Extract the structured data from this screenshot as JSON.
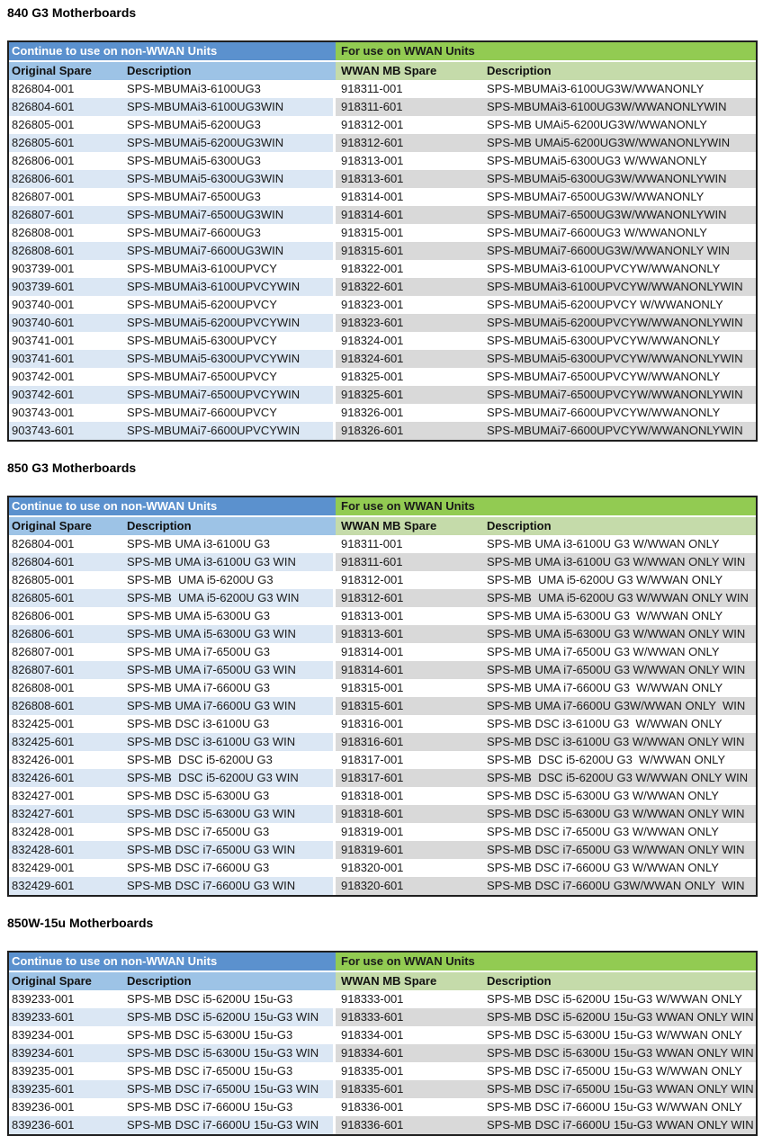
{
  "colors": {
    "header_blue": "#5b91ce",
    "header_blue_light": "#9dc3e6",
    "header_green": "#92cb52",
    "header_green_light": "#c5dbaa",
    "stripe_blue": "#dbe7f4",
    "stripe_gray": "#d9d9d9",
    "border_dark": "#1f1f1f"
  },
  "sections": [
    {
      "title": "840 G3 Motherboards",
      "left_group_label": "Continue to use on non-WWAN Units",
      "right_group_label": "For use on WWAN Units",
      "columns": [
        "Original Spare",
        "Description",
        "WWAN MB Spare",
        "Description"
      ],
      "rows": [
        [
          "826804-001",
          "SPS-MBUMAi3-6100UG3",
          "918311-001",
          "SPS-MBUMAi3-6100UG3W/WWANONLY"
        ],
        [
          "826804-601",
          "SPS-MBUMAi3-6100UG3WIN",
          "918311-601",
          "SPS-MBUMAi3-6100UG3W/WWANONLYWIN"
        ],
        [
          "826805-001",
          "SPS-MBUMAi5-6200UG3",
          "918312-001",
          "SPS-MB UMAi5-6200UG3W/WWANONLY"
        ],
        [
          "826805-601",
          "SPS-MBUMAi5-6200UG3WIN",
          "918312-601",
          "SPS-MB UMAi5-6200UG3W/WWANONLYWIN"
        ],
        [
          "826806-001",
          "SPS-MBUMAi5-6300UG3",
          "918313-001",
          "SPS-MBUMAi5-6300UG3 W/WWANONLY"
        ],
        [
          "826806-601",
          "SPS-MBUMAi5-6300UG3WIN",
          "918313-601",
          "SPS-MBUMAi5-6300UG3W/WWANONLYWIN"
        ],
        [
          "826807-001",
          "SPS-MBUMAi7-6500UG3",
          "918314-001",
          "SPS-MBUMAi7-6500UG3W/WWANONLY"
        ],
        [
          "826807-601",
          "SPS-MBUMAi7-6500UG3WIN",
          "918314-601",
          "SPS-MBUMAi7-6500UG3W/WWANONLYWIN"
        ],
        [
          "826808-001",
          "SPS-MBUMAi7-6600UG3",
          "918315-001",
          "SPS-MBUMAi7-6600UG3 W/WWANONLY"
        ],
        [
          "826808-601",
          "SPS-MBUMAi7-6600UG3WIN",
          "918315-601",
          "SPS-MBUMAi7-6600UG3W/WWANONLY WIN"
        ],
        [
          "903739-001",
          "SPS-MBUMAi3-6100UPVCY",
          "918322-001",
          "SPS-MBUMAi3-6100UPVCYW/WWANONLY"
        ],
        [
          "903739-601",
          "SPS-MBUMAi3-6100UPVCYWIN",
          "918322-601",
          "SPS-MBUMAi3-6100UPVCYW/WWANONLYWIN"
        ],
        [
          "903740-001",
          "SPS-MBUMAi5-6200UPVCY",
          "918323-001",
          "SPS-MBUMAi5-6200UPVCY W/WWANONLY"
        ],
        [
          "903740-601",
          "SPS-MBUMAi5-6200UPVCYWIN",
          "918323-601",
          "SPS-MBUMAi5-6200UPVCYW/WWANONLYWIN"
        ],
        [
          "903741-001",
          "SPS-MBUMAi5-6300UPVCY",
          "918324-001",
          "SPS-MBUMAi5-6300UPVCYW/WWANONLY"
        ],
        [
          "903741-601",
          "SPS-MBUMAi5-6300UPVCYWIN",
          "918324-601",
          "SPS-MBUMAi5-6300UPVCYW/WWANONLYWIN"
        ],
        [
          "903742-001",
          "SPS-MBUMAi7-6500UPVCY",
          "918325-001",
          "SPS-MBUMAi7-6500UPVCYW/WWANONLY"
        ],
        [
          "903742-601",
          "SPS-MBUMAi7-6500UPVCYWIN",
          "918325-601",
          "SPS-MBUMAi7-6500UPVCYW/WWANONLYWIN"
        ],
        [
          "903743-001",
          "SPS-MBUMAi7-6600UPVCY",
          "918326-001",
          "SPS-MBUMAi7-6600UPVCYW/WWANONLY"
        ],
        [
          "903743-601",
          "SPS-MBUMAi7-6600UPVCYWIN",
          "918326-601",
          "SPS-MBUMAi7-6600UPVCYW/WWANONLYWIN"
        ]
      ]
    },
    {
      "title": "850 G3 Motherboards",
      "left_group_label": "Continue to use on non-WWAN Units",
      "right_group_label": "For use on WWAN Units",
      "columns": [
        "Original Spare",
        "Description",
        "WWAN MB Spare",
        "Description"
      ],
      "rows": [
        [
          "826804-001",
          "SPS-MB UMA i3-6100U G3",
          "918311-001",
          "SPS-MB UMA i3-6100U G3 W/WWAN ONLY"
        ],
        [
          "826804-601",
          "SPS-MB UMA i3-6100U G3 WIN",
          "918311-601",
          "SPS-MB UMA i3-6100U G3 W/WWAN ONLY WIN"
        ],
        [
          "826805-001",
          "SPS-MB  UMA i5-6200U G3",
          "918312-001",
          "SPS-MB  UMA i5-6200U G3 W/WWAN ONLY"
        ],
        [
          "826805-601",
          "SPS-MB  UMA i5-6200U G3 WIN",
          "918312-601",
          "SPS-MB  UMA i5-6200U G3 W/WWAN ONLY WIN"
        ],
        [
          "826806-001",
          "SPS-MB UMA i5-6300U G3",
          "918313-001",
          "SPS-MB UMA i5-6300U G3  W/WWAN ONLY"
        ],
        [
          "826806-601",
          "SPS-MB UMA i5-6300U G3 WIN",
          "918313-601",
          "SPS-MB UMA i5-6300U G3 W/WWAN ONLY WIN"
        ],
        [
          "826807-001",
          "SPS-MB UMA i7-6500U G3",
          "918314-001",
          "SPS-MB UMA i7-6500U G3 W/WWAN ONLY"
        ],
        [
          "826807-601",
          "SPS-MB UMA i7-6500U G3 WIN",
          "918314-601",
          "SPS-MB UMA i7-6500U G3 W/WWAN ONLY WIN"
        ],
        [
          "826808-001",
          "SPS-MB UMA i7-6600U G3",
          "918315-001",
          "SPS-MB UMA i7-6600U G3  W/WWAN ONLY"
        ],
        [
          "826808-601",
          "SPS-MB UMA i7-6600U G3 WIN",
          "918315-601",
          "SPS-MB UMA i7-6600U G3W/WWAN ONLY  WIN"
        ],
        [
          "832425-001",
          "SPS-MB DSC i3-6100U G3",
          "918316-001",
          "SPS-MB DSC i3-6100U G3  W/WWAN ONLY"
        ],
        [
          "832425-601",
          "SPS-MB DSC i3-6100U G3 WIN",
          "918316-601",
          "SPS-MB DSC i3-6100U G3 W/WWAN ONLY WIN"
        ],
        [
          "832426-001",
          "SPS-MB  DSC i5-6200U G3",
          "918317-001",
          "SPS-MB  DSC i5-6200U G3  W/WWAN ONLY"
        ],
        [
          "832426-601",
          "SPS-MB  DSC i5-6200U G3 WIN",
          "918317-601",
          "SPS-MB  DSC i5-6200U G3 W/WWAN ONLY WIN"
        ],
        [
          "832427-001",
          "SPS-MB DSC i5-6300U G3",
          "918318-001",
          "SPS-MB DSC i5-6300U G3 W/WWAN ONLY"
        ],
        [
          "832427-601",
          "SPS-MB DSC i5-6300U G3 WIN",
          "918318-601",
          "SPS-MB DSC i5-6300U G3 W/WWAN ONLY WIN"
        ],
        [
          "832428-001",
          "SPS-MB DSC i7-6500U G3",
          "918319-001",
          "SPS-MB DSC i7-6500U G3 W/WWAN ONLY"
        ],
        [
          "832428-601",
          "SPS-MB DSC i7-6500U G3 WIN",
          "918319-601",
          "SPS-MB DSC i7-6500U G3 W/WWAN ONLY WIN"
        ],
        [
          "832429-001",
          "SPS-MB DSC i7-6600U G3",
          "918320-001",
          "SPS-MB DSC i7-6600U G3 W/WWAN ONLY"
        ],
        [
          "832429-601",
          "SPS-MB DSC i7-6600U G3 WIN",
          "918320-601",
          "SPS-MB DSC i7-6600U G3W/WWAN ONLY  WIN"
        ]
      ]
    },
    {
      "title": "850W-15u Motherboards",
      "left_group_label": "Continue to use on non-WWAN Units",
      "right_group_label": "For use on WWAN Units",
      "columns": [
        "Original Spare",
        "Description",
        "WWAN MB Spare",
        "Description"
      ],
      "rows": [
        [
          "839233-001",
          "SPS-MB DSC i5-6200U 15u-G3",
          "918333-001",
          "SPS-MB DSC i5-6200U 15u-G3 W/WWAN ONLY"
        ],
        [
          "839233-601",
          "SPS-MB DSC i5-6200U 15u-G3 WIN",
          "918333-601",
          "SPS-MB DSC i5-6200U 15u-G3 WWAN ONLY WIN"
        ],
        [
          "839234-001",
          "SPS-MB DSC i5-6300U 15u-G3",
          "918334-001",
          "SPS-MB DSC i5-6300U 15u-G3 W/WWAN ONLY"
        ],
        [
          "839234-601",
          "SPS-MB DSC i5-6300U 15u-G3 WIN",
          "918334-601",
          "SPS-MB DSC i5-6300U 15u-G3 WWAN ONLY WIN"
        ],
        [
          "839235-001",
          "SPS-MB DSC i7-6500U 15u-G3",
          "918335-001",
          "SPS-MB DSC i7-6500U 15u-G3 W/WWAN ONLY"
        ],
        [
          "839235-601",
          "SPS-MB DSC i7-6500U 15u-G3 WIN",
          "918335-601",
          "SPS-MB DSC i7-6500U 15u-G3 WWAN ONLY WIN"
        ],
        [
          "839236-001",
          "SPS-MB DSC i7-6600U 15u-G3",
          "918336-001",
          "SPS-MB DSC i7-6600U 15u-G3 W/WWAN ONLY"
        ],
        [
          "839236-601",
          "SPS-MB DSC i7-6600U 15u-G3 WIN",
          "918336-601",
          "SPS-MB DSC i7-6600U 15u-G3 WWAN ONLY WIN"
        ]
      ]
    }
  ]
}
